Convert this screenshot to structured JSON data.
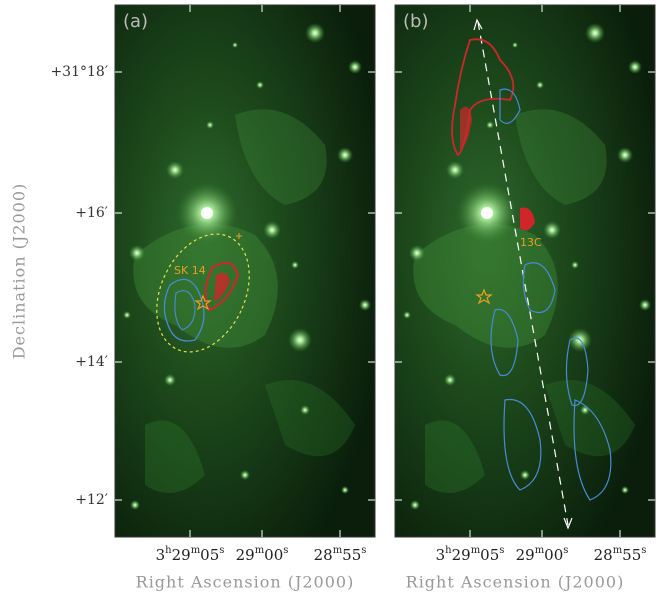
{
  "y_axis": {
    "label": "Declination (J2000)",
    "ticks": [
      "+31°18′",
      "+16′",
      "+14′",
      "+12′"
    ]
  },
  "panels": [
    {
      "label": "(a)",
      "x_axis_label": "Right Ascension (J2000)",
      "x_ticks": [
        [
          "3",
          "h",
          "29",
          "m",
          "05",
          "s"
        ],
        [
          "29",
          "m",
          "00",
          "s"
        ],
        [
          "28",
          "m",
          "55",
          "s"
        ]
      ],
      "annotations": [
        "SK 14"
      ]
    },
    {
      "label": "(b)",
      "x_axis_label": "Right Ascension (J2000)",
      "x_ticks": [
        [
          "3",
          "h",
          "29",
          "m",
          "05",
          "s"
        ],
        [
          "29",
          "m",
          "00",
          "s"
        ],
        [
          "28",
          "m",
          "55",
          "s"
        ]
      ],
      "annotations": [
        "13C"
      ]
    }
  ]
}
